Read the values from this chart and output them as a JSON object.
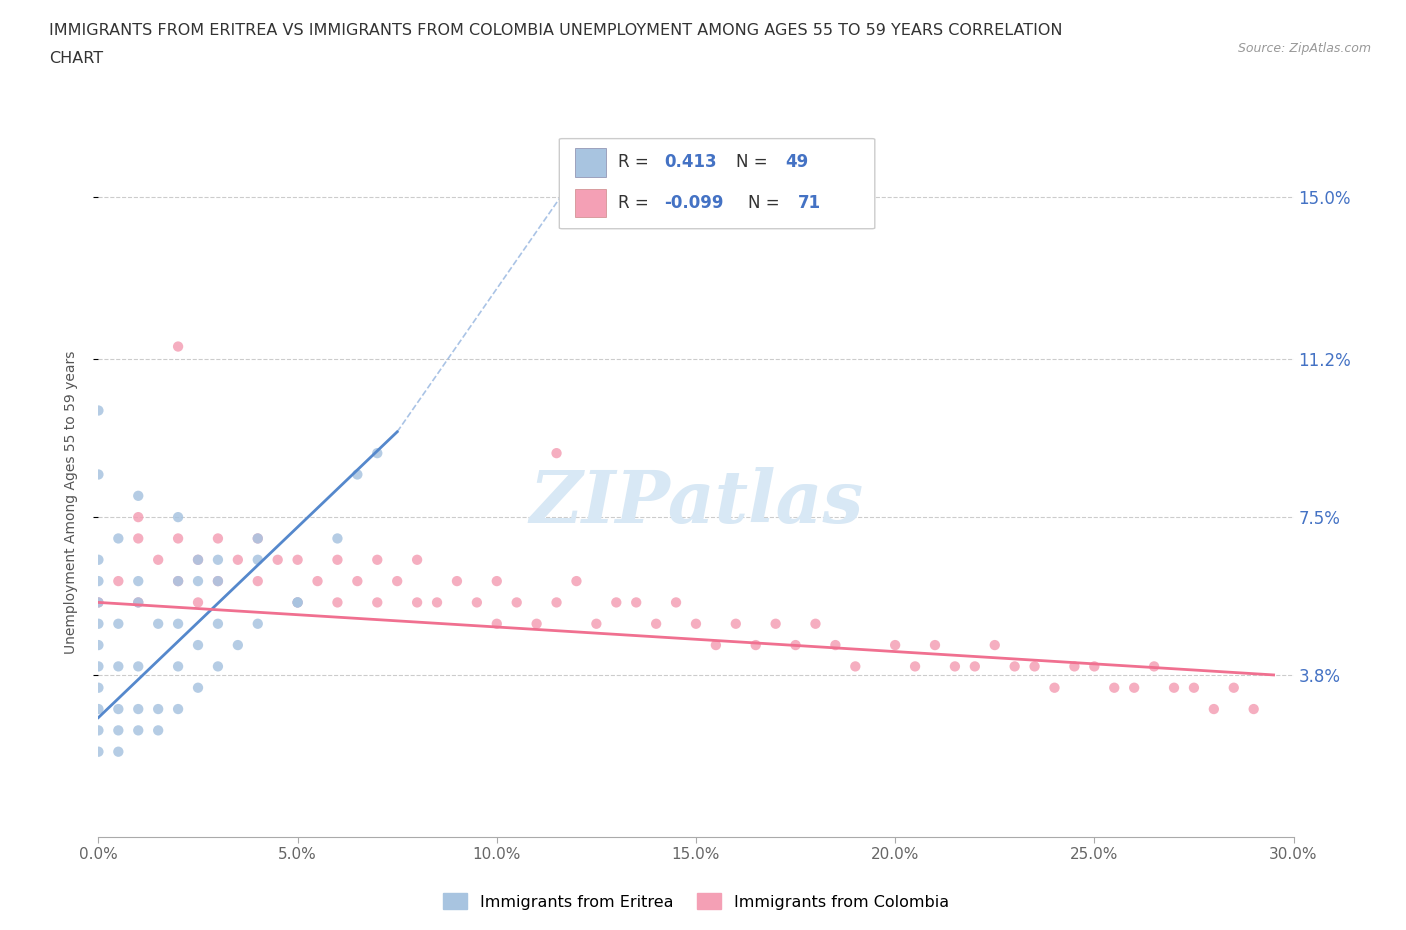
{
  "title_line1": "IMMIGRANTS FROM ERITREA VS IMMIGRANTS FROM COLOMBIA UNEMPLOYMENT AMONG AGES 55 TO 59 YEARS CORRELATION",
  "title_line2": "CHART",
  "source": "Source: ZipAtlas.com",
  "ylabel": "Unemployment Among Ages 55 to 59 years",
  "xlim": [
    0.0,
    0.3
  ],
  "ylim": [
    0.0,
    0.157
  ],
  "yticks": [
    0.038,
    0.075,
    0.112,
    0.15
  ],
  "ytick_labels": [
    "3.8%",
    "7.5%",
    "11.2%",
    "15.0%"
  ],
  "xticks": [
    0.0,
    0.05,
    0.1,
    0.15,
    0.2,
    0.25,
    0.3
  ],
  "xtick_labels": [
    "0.0%",
    "5.0%",
    "10.0%",
    "15.0%",
    "20.0%",
    "25.0%",
    "30.0%"
  ],
  "legend_label1": "Immigrants from Eritrea",
  "legend_label2": "Immigrants from Colombia",
  "color_eritrea": "#a8c4e0",
  "color_colombia": "#f4a0b5",
  "color_eritrea_line": "#5588cc",
  "color_colombia_line": "#f07090",
  "color_title": "#333333",
  "color_axis_label": "#555555",
  "color_tick_label_y": "#4472c4",
  "color_tick_label_x": "#666666",
  "color_legend_val": "#4472c4",
  "color_legend_text": "#333333",
  "watermark_color": "#d8e8f5",
  "eritrea_x": [
    0.0,
    0.0,
    0.0,
    0.0,
    0.0,
    0.0,
    0.0,
    0.0,
    0.0,
    0.0,
    0.005,
    0.005,
    0.005,
    0.005,
    0.005,
    0.01,
    0.01,
    0.01,
    0.01,
    0.01,
    0.015,
    0.015,
    0.015,
    0.02,
    0.02,
    0.02,
    0.02,
    0.025,
    0.025,
    0.025,
    0.03,
    0.03,
    0.03,
    0.035,
    0.04,
    0.04,
    0.05,
    0.06,
    0.065,
    0.07,
    0.0,
    0.0,
    0.005,
    0.01,
    0.02,
    0.025,
    0.03,
    0.04,
    0.05
  ],
  "eritrea_y": [
    0.02,
    0.025,
    0.03,
    0.035,
    0.04,
    0.045,
    0.05,
    0.055,
    0.06,
    0.065,
    0.02,
    0.025,
    0.03,
    0.04,
    0.05,
    0.025,
    0.03,
    0.04,
    0.055,
    0.06,
    0.025,
    0.03,
    0.05,
    0.03,
    0.04,
    0.05,
    0.06,
    0.035,
    0.045,
    0.06,
    0.04,
    0.05,
    0.065,
    0.045,
    0.05,
    0.07,
    0.055,
    0.07,
    0.085,
    0.09,
    0.085,
    0.1,
    0.07,
    0.08,
    0.075,
    0.065,
    0.06,
    0.065,
    0.055
  ],
  "colombia_x": [
    0.0,
    0.005,
    0.01,
    0.01,
    0.015,
    0.02,
    0.02,
    0.025,
    0.025,
    0.03,
    0.03,
    0.035,
    0.04,
    0.04,
    0.045,
    0.05,
    0.05,
    0.055,
    0.06,
    0.06,
    0.065,
    0.07,
    0.07,
    0.075,
    0.08,
    0.08,
    0.085,
    0.09,
    0.095,
    0.1,
    0.1,
    0.105,
    0.11,
    0.115,
    0.12,
    0.125,
    0.13,
    0.135,
    0.14,
    0.145,
    0.15,
    0.155,
    0.16,
    0.165,
    0.17,
    0.175,
    0.18,
    0.185,
    0.19,
    0.2,
    0.205,
    0.21,
    0.215,
    0.22,
    0.225,
    0.23,
    0.235,
    0.24,
    0.245,
    0.25,
    0.255,
    0.26,
    0.265,
    0.27,
    0.275,
    0.28,
    0.285,
    0.29,
    0.01,
    0.02,
    0.115
  ],
  "colombia_y": [
    0.055,
    0.06,
    0.055,
    0.07,
    0.065,
    0.06,
    0.07,
    0.065,
    0.055,
    0.06,
    0.07,
    0.065,
    0.06,
    0.07,
    0.065,
    0.055,
    0.065,
    0.06,
    0.055,
    0.065,
    0.06,
    0.055,
    0.065,
    0.06,
    0.055,
    0.065,
    0.055,
    0.06,
    0.055,
    0.05,
    0.06,
    0.055,
    0.05,
    0.055,
    0.06,
    0.05,
    0.055,
    0.055,
    0.05,
    0.055,
    0.05,
    0.045,
    0.05,
    0.045,
    0.05,
    0.045,
    0.05,
    0.045,
    0.04,
    0.045,
    0.04,
    0.045,
    0.04,
    0.04,
    0.045,
    0.04,
    0.04,
    0.035,
    0.04,
    0.04,
    0.035,
    0.035,
    0.04,
    0.035,
    0.035,
    0.03,
    0.035,
    0.03,
    0.075,
    0.115,
    0.09
  ],
  "eritrea_trendline_x": [
    0.0,
    0.075
  ],
  "eritrea_trendline_y": [
    0.028,
    0.095
  ],
  "colombia_trendline_x": [
    0.0,
    0.295
  ],
  "colombia_trendline_y": [
    0.055,
    0.038
  ]
}
